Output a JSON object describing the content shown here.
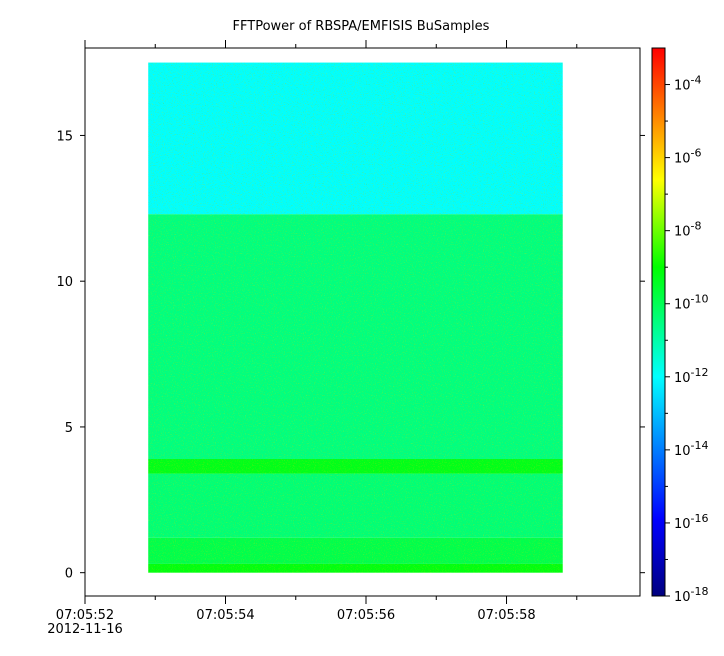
{
  "chart_data": {
    "type": "heatmap",
    "title": "FFTPower of RBSPA/EMFISIS  BuSamples",
    "xlabel": "",
    "ylabel": "",
    "x_start": "2012-11-16T07:05:52",
    "x_end": "2012-11-16T07:05:59.9",
    "ylim": [
      -0.8,
      18.0
    ],
    "y_ticks": [
      {
        "value": 0,
        "label": "0"
      },
      {
        "value": 5,
        "label": "5"
      },
      {
        "value": 10,
        "label": "10"
      },
      {
        "value": 15,
        "label": "15"
      }
    ],
    "x_ticks": [
      {
        "value": "2012-11-16T07:05:52",
        "label": "07:05:52",
        "sublabel": "2012-11-16"
      },
      {
        "value": "2012-11-16T07:05:54",
        "label": "07:05:54"
      },
      {
        "value": "2012-11-16T07:05:56",
        "label": "07:05:56"
      },
      {
        "value": "2012-11-16T07:05:58",
        "label": "07:05:58"
      }
    ],
    "x_minor_ticks": [
      "2012-11-16T07:05:53",
      "2012-11-16T07:05:55",
      "2012-11-16T07:05:57",
      "2012-11-16T07:05:59"
    ],
    "spectrogram": {
      "t_start": "2012-11-16T07:05:52.9",
      "t_end": "2012-11-16T07:05:58.8",
      "f_min": 0,
      "f_max": 17.5,
      "bands": [
        {
          "f_min": 0.0,
          "f_max": 0.3,
          "log10_power": -9.2
        },
        {
          "f_min": 0.3,
          "f_max": 1.2,
          "log10_power": -9.9
        },
        {
          "f_min": 1.2,
          "f_max": 3.4,
          "log10_power": -10.4
        },
        {
          "f_min": 3.4,
          "f_max": 3.9,
          "log10_power": -9.3
        },
        {
          "f_min": 3.9,
          "f_max": 12.3,
          "log10_power": -10.5
        },
        {
          "f_min": 12.3,
          "f_max": 17.5,
          "log10_power": -12.0
        }
      ]
    },
    "colorbar": {
      "scale": "log",
      "range": [
        1e-18,
        0.001
      ],
      "ticks": [
        {
          "exp": -4,
          "base": "10",
          "sup": "-4"
        },
        {
          "exp": -6,
          "base": "10",
          "sup": "-6"
        },
        {
          "exp": -8,
          "base": "10",
          "sup": "-8"
        },
        {
          "exp": -10,
          "base": "10",
          "sup": "-10"
        },
        {
          "exp": -12,
          "base": "10",
          "sup": "-12"
        },
        {
          "exp": -14,
          "base": "10",
          "sup": "-14"
        },
        {
          "exp": -16,
          "base": "10",
          "sup": "-16"
        },
        {
          "exp": -18,
          "base": "10",
          "sup": "-18"
        }
      ],
      "colormap": [
        "#00007f",
        "#0000ff",
        "#00ffff",
        "#00ff00",
        "#ffff00",
        "#ff7f00",
        "#ff0000"
      ]
    },
    "grid": false
  }
}
